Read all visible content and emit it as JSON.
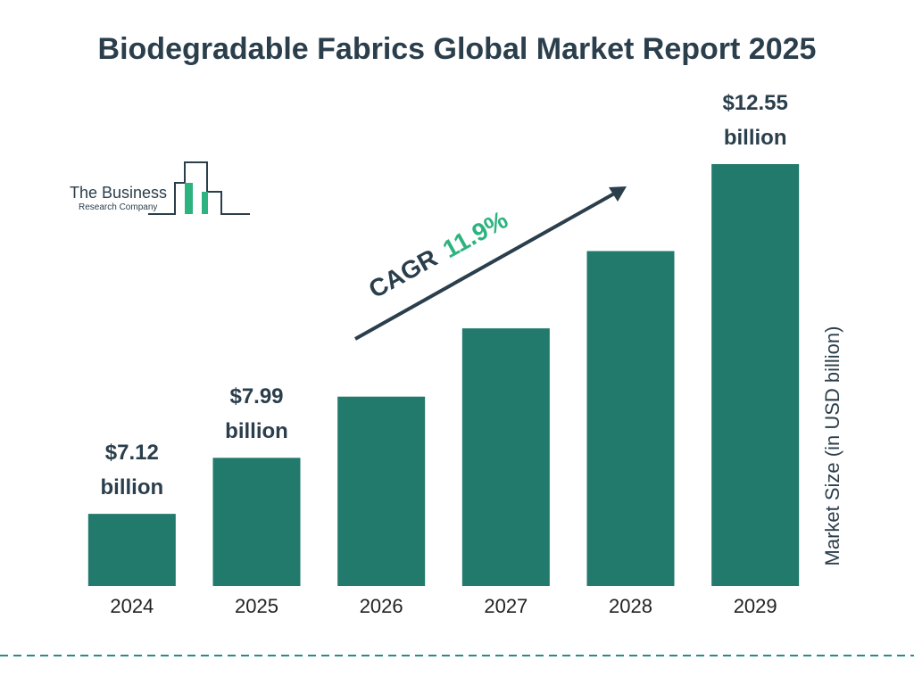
{
  "chart_data": {
    "type": "bar",
    "title": "Biodegradable Fabrics Global Market Report 2025",
    "y_label": "Market Size (in USD billion)",
    "categories": [
      "2024",
      "2025",
      "2026",
      "2027",
      "2028",
      "2029"
    ],
    "values": [
      7.12,
      7.99,
      8.94,
      10.0,
      11.2,
      12.55
    ],
    "value_labels": [
      "$7.12 billion",
      "$7.99 billion",
      null,
      null,
      null,
      "$12.55 billion"
    ],
    "color": "#217a6b",
    "ylim": [
      6,
      13
    ],
    "annotation": {
      "label": "CAGR",
      "value": "11.9%"
    }
  },
  "logo": {
    "name": "The Business",
    "subtitle": "Research Company"
  }
}
